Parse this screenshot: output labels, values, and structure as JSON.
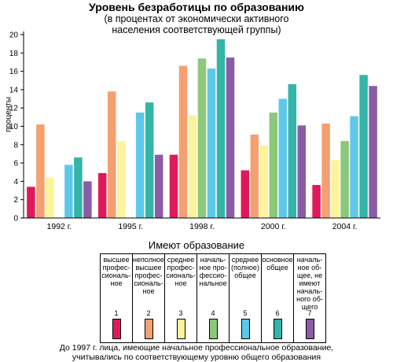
{
  "chart_data": {
    "type": "bar",
    "title": "Уровень безработицы по образованию",
    "subtitle_lines": [
      "(в процентах от экономически активного",
      "населения соответствующей группы)"
    ],
    "ylabel": "проценты",
    "ylim": [
      0,
      20
    ],
    "yticks": [
      0,
      2,
      4,
      6,
      8,
      10,
      12,
      14,
      16,
      18,
      20
    ],
    "categories": [
      "1992 г.",
      "1995 г.",
      "1998 г.",
      "2000 г.",
      "2004 г."
    ],
    "series": [
      {
        "name": "высшее профессиональное",
        "color": "#e0195a",
        "values": [
          3.4,
          4.9,
          6.9,
          5.2,
          3.6
        ]
      },
      {
        "name": "неполное высшее профессиональное",
        "color": "#f4a070",
        "values": [
          10.2,
          13.8,
          16.6,
          9.1,
          10.3
        ]
      },
      {
        "name": "среднее профессиональное",
        "color": "#fbf49a",
        "values": [
          4.4,
          8.4,
          11.2,
          7.9,
          6.3
        ]
      },
      {
        "name": "начальное профессиональное",
        "color": "#8cc87a",
        "values": [
          null,
          null,
          17.4,
          11.5,
          8.4
        ]
      },
      {
        "name": "среднее (полное) общее",
        "color": "#5ec8ea",
        "values": [
          5.8,
          11.5,
          16.3,
          13.0,
          11.1
        ]
      },
      {
        "name": "основное общее",
        "color": "#35b4a8",
        "values": [
          6.6,
          12.6,
          19.5,
          14.6,
          15.6
        ]
      },
      {
        "name": "начальное общее, не имеют начального общего",
        "color": "#8a5ca8",
        "values": [
          4.0,
          6.9,
          17.5,
          10.1,
          14.4
        ]
      }
    ]
  },
  "legend": {
    "title": "Имеют образование",
    "items": [
      {
        "num": "1",
        "lines": [
          "высшее",
          "профес-",
          "сиональ-",
          "ное"
        ]
      },
      {
        "num": "2",
        "lines": [
          "неполное",
          "высшее",
          "профес-",
          "сиональ-",
          "ное"
        ]
      },
      {
        "num": "3",
        "lines": [
          "среднее",
          "профес-",
          "сиональ-",
          "ное"
        ]
      },
      {
        "num": "4",
        "lines": [
          "началь-",
          "ное про-",
          "фессио-",
          "нальное"
        ]
      },
      {
        "num": "5",
        "lines": [
          "среднее",
          "(полное)",
          "общее"
        ]
      },
      {
        "num": "6",
        "lines": [
          "основное",
          "общее"
        ]
      },
      {
        "num": "7",
        "lines": [
          "началь-",
          "ное об-",
          "щее, не",
          "имеют",
          "началь-",
          "ного об-",
          "щего"
        ]
      }
    ]
  },
  "footnote": {
    "line1": "До 1997 г. лица, имеющие начальное профессиональное образование,",
    "line2": "учитывались по соответствующему уровню общего образования"
  }
}
